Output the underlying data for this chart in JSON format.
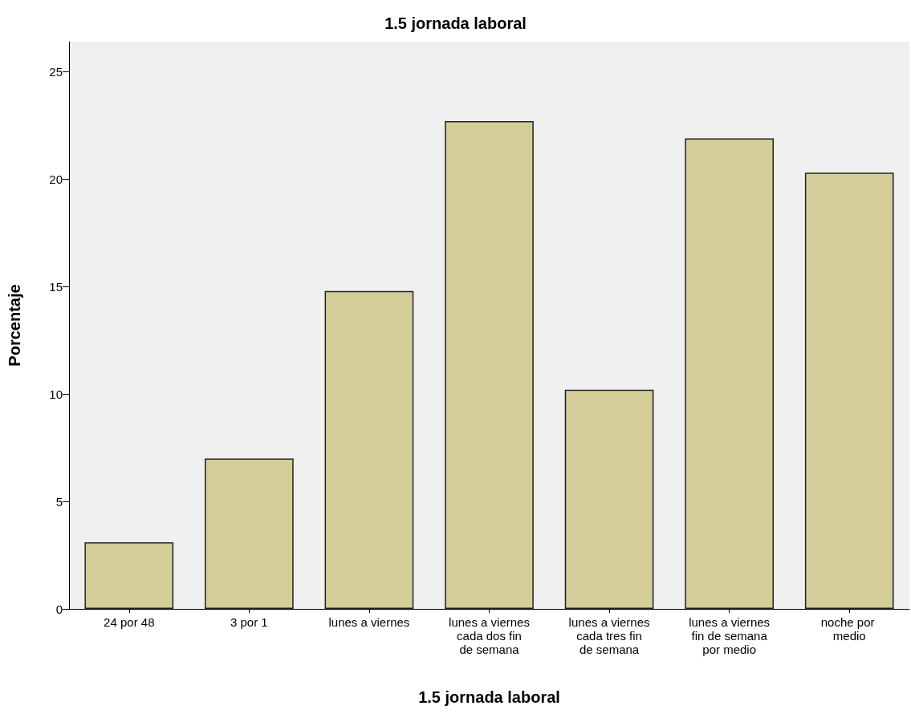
{
  "chart_data": {
    "type": "bar",
    "title": "1.5 jornada laboral",
    "xlabel": "1.5 jornada laboral",
    "ylabel": "Porcentaje",
    "categories": [
      "24 por 48",
      "3 por 1",
      "lunes a viernes",
      "lunes a viernes cada dos fin de semana",
      "lunes a viernes cada tres fin de semana",
      "lunes a viernes fin de semana por medio",
      "noche por medio"
    ],
    "values": [
      3.1,
      7.0,
      14.8,
      22.7,
      10.2,
      21.9,
      20.3
    ],
    "color": "#d3ce97",
    "ylim": [
      0,
      26.4
    ],
    "yticks": [
      0,
      5,
      10,
      15,
      20,
      25
    ],
    "grid": false
  }
}
